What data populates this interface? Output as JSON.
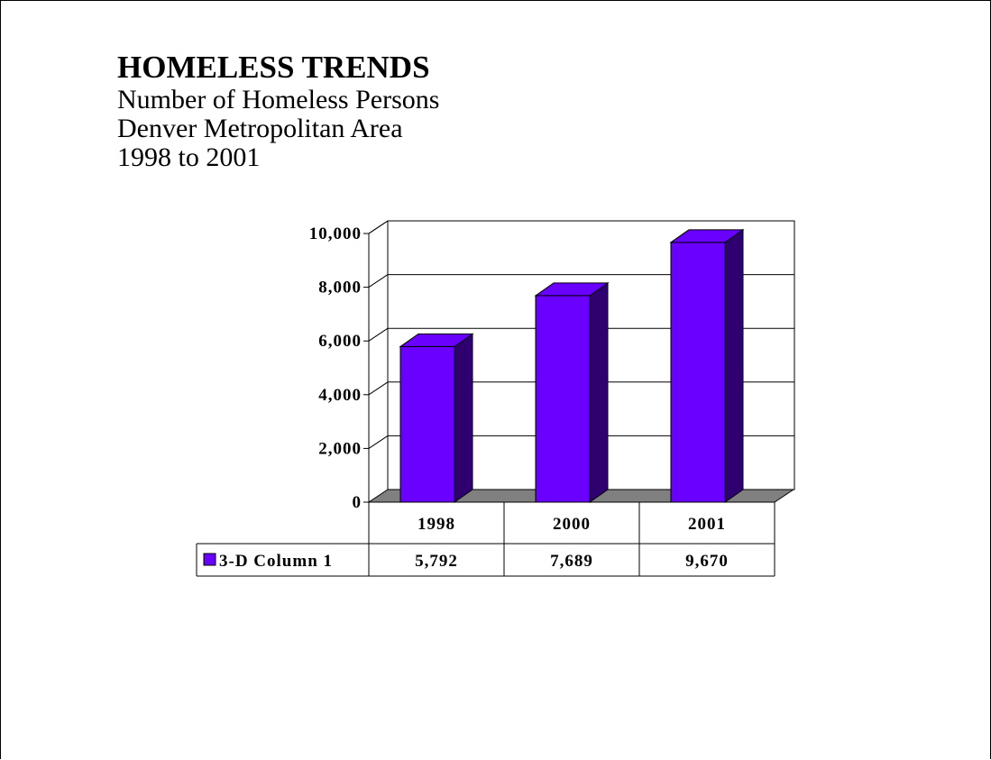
{
  "title": "HOMELESS TRENDS",
  "subtitle_lines": [
    "Number of Homeless Persons",
    "Denver Metropolitan Area",
    "1998 to 2001"
  ],
  "colors": {
    "bar_front": "#6a00ff",
    "bar_side": "#2e0070",
    "floor": "#808080"
  },
  "chart_data": {
    "type": "bar",
    "categories": [
      "1998",
      "2000",
      "2001"
    ],
    "series": [
      {
        "name": "3-D Column 1",
        "values": [
          5792,
          7689,
          9670
        ]
      }
    ],
    "value_labels": [
      "5,792",
      "7,689",
      "9,670"
    ],
    "y_ticks": [
      "0",
      "2,000",
      "4,000",
      "6,000",
      "8,000",
      "10,000"
    ],
    "ylim": [
      0,
      10000
    ],
    "grid": true,
    "legend": "data-table"
  }
}
